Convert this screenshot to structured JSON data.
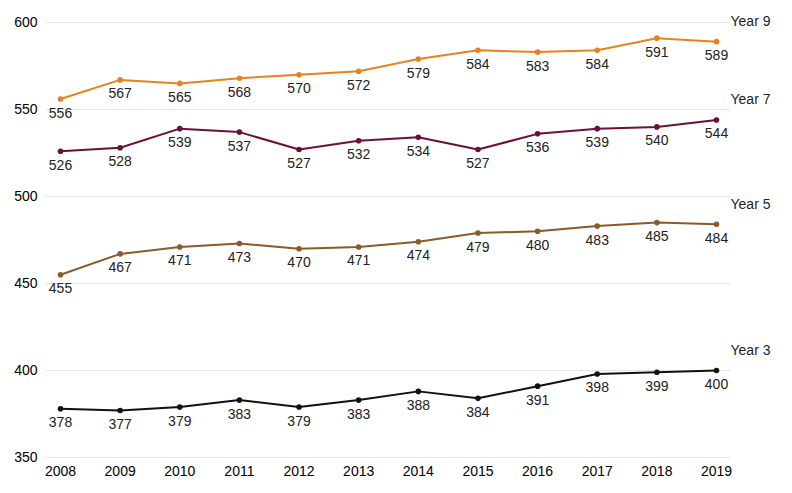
{
  "chart_data": {
    "type": "line",
    "x": [
      2008,
      2009,
      2010,
      2011,
      2012,
      2013,
      2014,
      2015,
      2016,
      2017,
      2018,
      2019
    ],
    "xlim": [
      2008,
      2019
    ],
    "xticks": [
      2008,
      2009,
      2010,
      2011,
      2012,
      2013,
      2014,
      2015,
      2016,
      2017,
      2018,
      2019
    ],
    "ylim": [
      350,
      600
    ],
    "yticks": [
      350,
      400,
      450,
      500,
      550,
      600
    ],
    "grid": true,
    "data_labels": true,
    "marker": "circle",
    "series": [
      {
        "name": "Year 9",
        "color": "#e8821e",
        "values": [
          556,
          567,
          565,
          568,
          570,
          572,
          579,
          584,
          583,
          584,
          591,
          589
        ]
      },
      {
        "name": "Year 7",
        "color": "#6b0f3c",
        "values": [
          526,
          528,
          539,
          537,
          527,
          532,
          534,
          527,
          536,
          539,
          540,
          544
        ]
      },
      {
        "name": "Year 5",
        "color": "#8b5a2b",
        "values": [
          455,
          467,
          471,
          473,
          470,
          471,
          474,
          479,
          480,
          483,
          485,
          484
        ]
      },
      {
        "name": "Year 3",
        "color": "#111111",
        "values": [
          378,
          377,
          379,
          383,
          379,
          383,
          388,
          384,
          391,
          398,
          399,
          400
        ]
      }
    ]
  }
}
